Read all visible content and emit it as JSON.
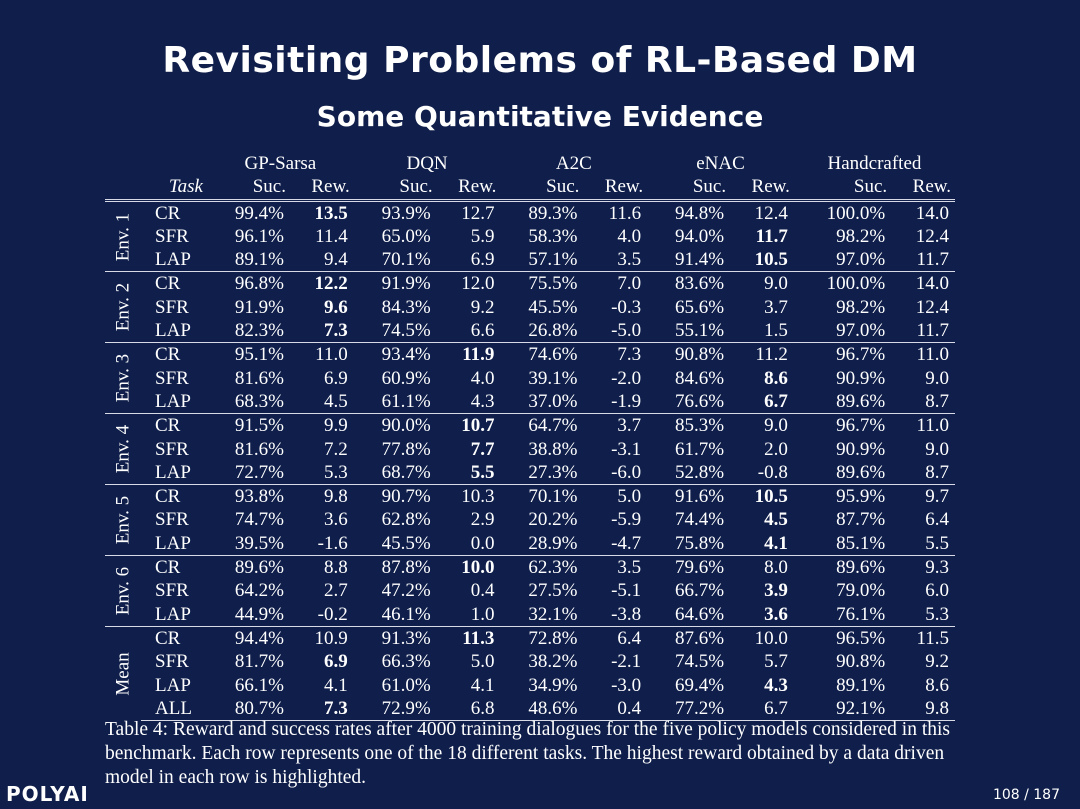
{
  "slide": {
    "title": "Revisiting Problems of RL-Based DM",
    "subtitle": "Some Quantitative Evidence",
    "logo": "POLYAI",
    "page": "108 / 187"
  },
  "table": {
    "task_header": "Task",
    "models": [
      "GP-Sarsa",
      "DQN",
      "A2C",
      "eNAC",
      "Handcrafted"
    ],
    "sub_headers": [
      "Suc.",
      "Rew."
    ],
    "groups": [
      {
        "label": "Env. 1",
        "rows": [
          {
            "task": "CR",
            "cells": [
              "99.4%",
              "13.5",
              "93.9%",
              "12.7",
              "89.3%",
              "11.6",
              "94.8%",
              "12.4",
              "100.0%",
              "14.0"
            ],
            "bold": 1
          },
          {
            "task": "SFR",
            "cells": [
              "96.1%",
              "11.4",
              "65.0%",
              "5.9",
              "58.3%",
              "4.0",
              "94.0%",
              "11.7",
              "98.2%",
              "12.4"
            ],
            "bold": 7
          },
          {
            "task": "LAP",
            "cells": [
              "89.1%",
              "9.4",
              "70.1%",
              "6.9",
              "57.1%",
              "3.5",
              "91.4%",
              "10.5",
              "97.0%",
              "11.7"
            ],
            "bold": 7
          }
        ]
      },
      {
        "label": "Env. 2",
        "rows": [
          {
            "task": "CR",
            "cells": [
              "96.8%",
              "12.2",
              "91.9%",
              "12.0",
              "75.5%",
              "7.0",
              "83.6%",
              "9.0",
              "100.0%",
              "14.0"
            ],
            "bold": 1
          },
          {
            "task": "SFR",
            "cells": [
              "91.9%",
              "9.6",
              "84.3%",
              "9.2",
              "45.5%",
              "-0.3",
              "65.6%",
              "3.7",
              "98.2%",
              "12.4"
            ],
            "bold": 1
          },
          {
            "task": "LAP",
            "cells": [
              "82.3%",
              "7.3",
              "74.5%",
              "6.6",
              "26.8%",
              "-5.0",
              "55.1%",
              "1.5",
              "97.0%",
              "11.7"
            ],
            "bold": 1
          }
        ]
      },
      {
        "label": "Env. 3",
        "rows": [
          {
            "task": "CR",
            "cells": [
              "95.1%",
              "11.0",
              "93.4%",
              "11.9",
              "74.6%",
              "7.3",
              "90.8%",
              "11.2",
              "96.7%",
              "11.0"
            ],
            "bold": 3
          },
          {
            "task": "SFR",
            "cells": [
              "81.6%",
              "6.9",
              "60.9%",
              "4.0",
              "39.1%",
              "-2.0",
              "84.6%",
              "8.6",
              "90.9%",
              "9.0"
            ],
            "bold": 7
          },
          {
            "task": "LAP",
            "cells": [
              "68.3%",
              "4.5",
              "61.1%",
              "4.3",
              "37.0%",
              "-1.9",
              "76.6%",
              "6.7",
              "89.6%",
              "8.7"
            ],
            "bold": 7
          }
        ]
      },
      {
        "label": "Env. 4",
        "rows": [
          {
            "task": "CR",
            "cells": [
              "91.5%",
              "9.9",
              "90.0%",
              "10.7",
              "64.7%",
              "3.7",
              "85.3%",
              "9.0",
              "96.7%",
              "11.0"
            ],
            "bold": 3
          },
          {
            "task": "SFR",
            "cells": [
              "81.6%",
              "7.2",
              "77.8%",
              "7.7",
              "38.8%",
              "-3.1",
              "61.7%",
              "2.0",
              "90.9%",
              "9.0"
            ],
            "bold": 3
          },
          {
            "task": "LAP",
            "cells": [
              "72.7%",
              "5.3",
              "68.7%",
              "5.5",
              "27.3%",
              "-6.0",
              "52.8%",
              "-0.8",
              "89.6%",
              "8.7"
            ],
            "bold": 3
          }
        ]
      },
      {
        "label": "Env. 5",
        "rows": [
          {
            "task": "CR",
            "cells": [
              "93.8%",
              "9.8",
              "90.7%",
              "10.3",
              "70.1%",
              "5.0",
              "91.6%",
              "10.5",
              "95.9%",
              "9.7"
            ],
            "bold": 7
          },
          {
            "task": "SFR",
            "cells": [
              "74.7%",
              "3.6",
              "62.8%",
              "2.9",
              "20.2%",
              "-5.9",
              "74.4%",
              "4.5",
              "87.7%",
              "6.4"
            ],
            "bold": 7
          },
          {
            "task": "LAP",
            "cells": [
              "39.5%",
              "-1.6",
              "45.5%",
              "0.0",
              "28.9%",
              "-4.7",
              "75.8%",
              "4.1",
              "85.1%",
              "5.5"
            ],
            "bold": 7
          }
        ]
      },
      {
        "label": "Env. 6",
        "rows": [
          {
            "task": "CR",
            "cells": [
              "89.6%",
              "8.8",
              "87.8%",
              "10.0",
              "62.3%",
              "3.5",
              "79.6%",
              "8.0",
              "89.6%",
              "9.3"
            ],
            "bold": 3
          },
          {
            "task": "SFR",
            "cells": [
              "64.2%",
              "2.7",
              "47.2%",
              "0.4",
              "27.5%",
              "-5.1",
              "66.7%",
              "3.9",
              "79.0%",
              "6.0"
            ],
            "bold": 7
          },
          {
            "task": "LAP",
            "cells": [
              "44.9%",
              "-0.2",
              "46.1%",
              "1.0",
              "32.1%",
              "-3.8",
              "64.6%",
              "3.6",
              "76.1%",
              "5.3"
            ],
            "bold": 7
          }
        ]
      },
      {
        "label": "Mean",
        "rows": [
          {
            "task": "CR",
            "cells": [
              "94.4%",
              "10.9",
              "91.3%",
              "11.3",
              "72.8%",
              "6.4",
              "87.6%",
              "10.0",
              "96.5%",
              "11.5"
            ],
            "bold": 3
          },
          {
            "task": "SFR",
            "cells": [
              "81.7%",
              "6.9",
              "66.3%",
              "5.0",
              "38.2%",
              "-2.1",
              "74.5%",
              "5.7",
              "90.8%",
              "9.2"
            ],
            "bold": 1
          },
          {
            "task": "LAP",
            "cells": [
              "66.1%",
              "4.1",
              "61.0%",
              "4.1",
              "34.9%",
              "-3.0",
              "69.4%",
              "4.3",
              "89.1%",
              "8.6"
            ],
            "bold": 7
          },
          {
            "task": "ALL",
            "cells": [
              "80.7%",
              "7.3",
              "72.9%",
              "6.8",
              "48.6%",
              "0.4",
              "77.2%",
              "6.7",
              "92.1%",
              "9.8"
            ],
            "bold": 1
          }
        ]
      }
    ],
    "caption": "Table 4: Reward and success rates after 4000 training dialogues for the five policy models considered in this benchmark. Each row represents one of the 18 different tasks. The highest reward obtained by a data driven model in each row is highlighted."
  },
  "colors": {
    "background": "#0f1e4a",
    "text": "#ffffff",
    "rule": "#d8dbe6"
  }
}
